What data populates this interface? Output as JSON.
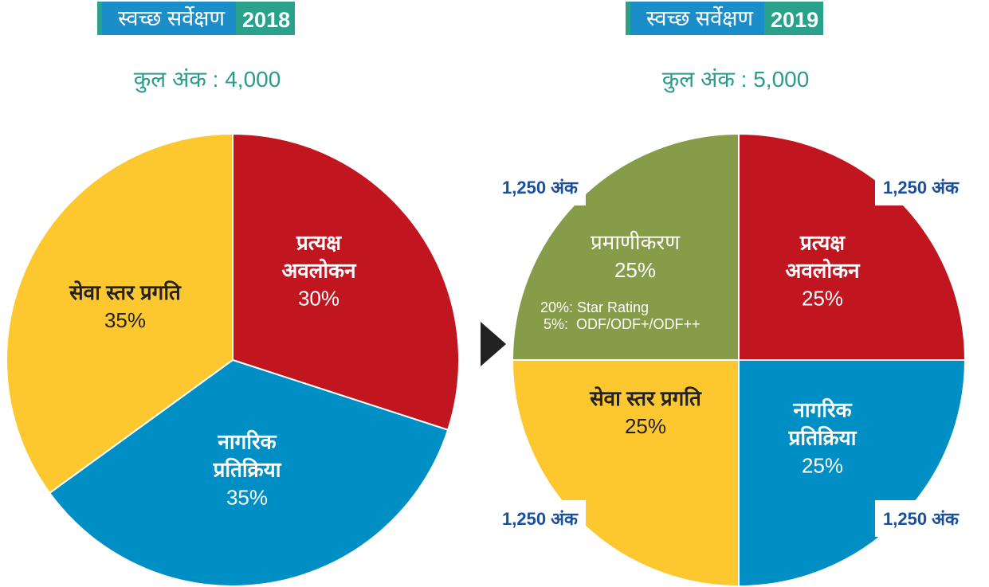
{
  "chart_data": [
    {
      "type": "pie",
      "title": "स्वच्छ सर्वेक्षण",
      "year": "2018",
      "subtitle": "कुल अंक : 4,000",
      "categories": [
        "प्रत्यक्ष अवलोकन",
        "नागरिक प्रतिक्रिया",
        "सेवा स्तर प्रगति"
      ],
      "values": [
        30,
        35,
        35
      ],
      "value_labels": [
        "30%",
        "35%",
        "35%"
      ],
      "colors": [
        "#c1161f",
        "#008fc5",
        "#fdc82f"
      ]
    },
    {
      "type": "pie",
      "title": "स्वच्छ सर्वेक्षण",
      "year": "2019",
      "subtitle": "कुल अंक : 5,000",
      "categories": [
        "प्रत्यक्ष अवलोकन",
        "नागरिक प्रतिक्रिया",
        "सेवा स्तर प्रगति",
        "प्रमाणीकरण"
      ],
      "values": [
        25,
        25,
        25,
        25
      ],
      "value_labels": [
        "25%",
        "25%",
        "25%",
        "25%"
      ],
      "colors": [
        "#c1161f",
        "#008fc5",
        "#fdc82f",
        "#879c49"
      ],
      "point_labels": [
        "1,250 अंक",
        "1,250 अंक",
        "1,250 अंक",
        "1,250 अंक"
      ],
      "annotations": [
        "20%: Star Rating",
        "5%:  ODF/ODF+/ODF++"
      ]
    }
  ]
}
